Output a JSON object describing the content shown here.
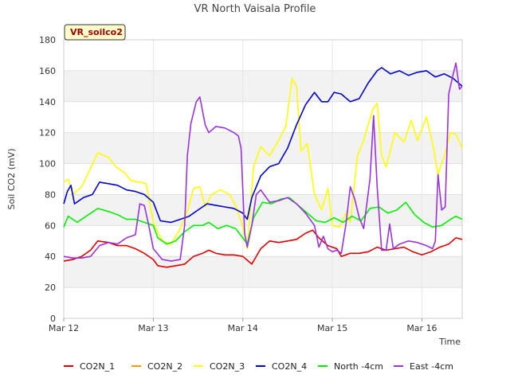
{
  "chart_data": {
    "type": "line",
    "title": "VR North Vaisala Profile",
    "xlabel": "Time",
    "ylabel": "Soil CO2 (mV)",
    "badge": "VR_soilco2",
    "ylim": [
      0,
      180
    ],
    "yticks": [
      0,
      20,
      40,
      60,
      80,
      100,
      120,
      140,
      160,
      180
    ],
    "xlim": [
      0,
      4.45
    ],
    "xticks": [
      {
        "value": 0,
        "label": "Mar 12"
      },
      {
        "value": 1,
        "label": "Mar 13"
      },
      {
        "value": 2,
        "label": "Mar 14"
      },
      {
        "value": 3,
        "label": "Mar 15"
      },
      {
        "value": 4,
        "label": "Mar 16"
      }
    ],
    "grid": true,
    "legend_position": "bottom",
    "series": [
      {
        "name": "CO2N_1",
        "color": "#dd0000",
        "points": [
          [
            0,
            37
          ],
          [
            0.1,
            38
          ],
          [
            0.2,
            40
          ],
          [
            0.3,
            44
          ],
          [
            0.38,
            50
          ],
          [
            0.5,
            49
          ],
          [
            0.6,
            47
          ],
          [
            0.7,
            47
          ],
          [
            0.8,
            45
          ],
          [
            0.9,
            42
          ],
          [
            1.0,
            38
          ],
          [
            1.05,
            34
          ],
          [
            1.15,
            33
          ],
          [
            1.25,
            34
          ],
          [
            1.35,
            35
          ],
          [
            1.45,
            40
          ],
          [
            1.55,
            42
          ],
          [
            1.62,
            44
          ],
          [
            1.7,
            42
          ],
          [
            1.8,
            41
          ],
          [
            1.9,
            41
          ],
          [
            2.0,
            40
          ],
          [
            2.1,
            35
          ],
          [
            2.2,
            45
          ],
          [
            2.3,
            50
          ],
          [
            2.4,
            49
          ],
          [
            2.5,
            50
          ],
          [
            2.6,
            51
          ],
          [
            2.7,
            55
          ],
          [
            2.78,
            57
          ],
          [
            2.85,
            52
          ],
          [
            2.95,
            47
          ],
          [
            3.05,
            45
          ],
          [
            3.1,
            40
          ],
          [
            3.2,
            42
          ],
          [
            3.3,
            42
          ],
          [
            3.4,
            43
          ],
          [
            3.5,
            46
          ],
          [
            3.6,
            44
          ],
          [
            3.7,
            45
          ],
          [
            3.8,
            46
          ],
          [
            3.9,
            43
          ],
          [
            4.0,
            41
          ],
          [
            4.1,
            43
          ],
          [
            4.2,
            46
          ],
          [
            4.3,
            48
          ],
          [
            4.38,
            52
          ],
          [
            4.45,
            51
          ]
        ]
      },
      {
        "name": "CO2N_2",
        "color": "#ff9900",
        "points": []
      },
      {
        "name": "CO2N_3",
        "color": "#ffff00",
        "points": [
          [
            0,
            88
          ],
          [
            0.05,
            90
          ],
          [
            0.1,
            80
          ],
          [
            0.2,
            85
          ],
          [
            0.3,
            97
          ],
          [
            0.38,
            107
          ],
          [
            0.5,
            104
          ],
          [
            0.58,
            98
          ],
          [
            0.68,
            94
          ],
          [
            0.75,
            89
          ],
          [
            0.85,
            88
          ],
          [
            0.92,
            87
          ],
          [
            1.0,
            62
          ],
          [
            1.1,
            50
          ],
          [
            1.2,
            48
          ],
          [
            1.3,
            58
          ],
          [
            1.38,
            69
          ],
          [
            1.45,
            84
          ],
          [
            1.52,
            85
          ],
          [
            1.58,
            72
          ],
          [
            1.65,
            80
          ],
          [
            1.75,
            83
          ],
          [
            1.85,
            80
          ],
          [
            1.92,
            73
          ],
          [
            2.0,
            59
          ],
          [
            2.05,
            45
          ],
          [
            2.12,
            98
          ],
          [
            2.2,
            111
          ],
          [
            2.3,
            105
          ],
          [
            2.4,
            115
          ],
          [
            2.48,
            124
          ],
          [
            2.55,
            155
          ],
          [
            2.6,
            150
          ],
          [
            2.65,
            108
          ],
          [
            2.72,
            113
          ],
          [
            2.8,
            80
          ],
          [
            2.88,
            70
          ],
          [
            2.95,
            84
          ],
          [
            3.0,
            60
          ],
          [
            3.08,
            59
          ],
          [
            3.15,
            68
          ],
          [
            3.2,
            62
          ],
          [
            3.28,
            105
          ],
          [
            3.35,
            115
          ],
          [
            3.45,
            135
          ],
          [
            3.5,
            139
          ],
          [
            3.55,
            105
          ],
          [
            3.6,
            98
          ],
          [
            3.7,
            120
          ],
          [
            3.8,
            114
          ],
          [
            3.88,
            128
          ],
          [
            3.95,
            115
          ],
          [
            4.05,
            130
          ],
          [
            4.12,
            113
          ],
          [
            4.18,
            93
          ],
          [
            4.25,
            105
          ],
          [
            4.32,
            120
          ],
          [
            4.38,
            119
          ],
          [
            4.45,
            110
          ]
        ]
      },
      {
        "name": "CO2N_4",
        "color": "#0000cc",
        "points": [
          [
            0,
            74
          ],
          [
            0.04,
            82
          ],
          [
            0.08,
            86
          ],
          [
            0.12,
            74
          ],
          [
            0.22,
            78
          ],
          [
            0.32,
            80
          ],
          [
            0.4,
            88
          ],
          [
            0.5,
            87
          ],
          [
            0.6,
            86
          ],
          [
            0.7,
            83
          ],
          [
            0.8,
            82
          ],
          [
            0.9,
            80
          ],
          [
            1.0,
            75
          ],
          [
            1.08,
            63
          ],
          [
            1.2,
            62
          ],
          [
            1.3,
            64
          ],
          [
            1.4,
            66
          ],
          [
            1.5,
            70
          ],
          [
            1.6,
            74
          ],
          [
            1.7,
            73
          ],
          [
            1.8,
            72
          ],
          [
            1.9,
            71
          ],
          [
            2.0,
            68
          ],
          [
            2.05,
            64
          ],
          [
            2.1,
            78
          ],
          [
            2.2,
            92
          ],
          [
            2.3,
            98
          ],
          [
            2.4,
            100
          ],
          [
            2.5,
            110
          ],
          [
            2.6,
            125
          ],
          [
            2.7,
            138
          ],
          [
            2.8,
            146
          ],
          [
            2.88,
            140
          ],
          [
            2.95,
            140
          ],
          [
            3.02,
            146
          ],
          [
            3.1,
            145
          ],
          [
            3.2,
            140
          ],
          [
            3.3,
            142
          ],
          [
            3.4,
            152
          ],
          [
            3.5,
            160
          ],
          [
            3.55,
            162
          ],
          [
            3.65,
            158
          ],
          [
            3.75,
            160
          ],
          [
            3.85,
            157
          ],
          [
            3.95,
            159
          ],
          [
            4.05,
            160
          ],
          [
            4.15,
            156
          ],
          [
            4.25,
            158
          ],
          [
            4.35,
            155
          ],
          [
            4.45,
            150
          ]
        ]
      },
      {
        "name": "North -4cm",
        "color": "#00ee00",
        "points": [
          [
            0,
            59
          ],
          [
            0.05,
            66
          ],
          [
            0.15,
            62
          ],
          [
            0.25,
            66
          ],
          [
            0.38,
            71
          ],
          [
            0.5,
            69
          ],
          [
            0.6,
            67
          ],
          [
            0.7,
            64
          ],
          [
            0.8,
            64
          ],
          [
            0.9,
            62
          ],
          [
            1.0,
            60
          ],
          [
            1.05,
            52
          ],
          [
            1.15,
            48
          ],
          [
            1.25,
            50
          ],
          [
            1.35,
            56
          ],
          [
            1.45,
            60
          ],
          [
            1.55,
            60
          ],
          [
            1.62,
            62
          ],
          [
            1.72,
            58
          ],
          [
            1.82,
            60
          ],
          [
            1.92,
            58
          ],
          [
            2.0,
            52
          ],
          [
            2.05,
            48
          ],
          [
            2.12,
            65
          ],
          [
            2.22,
            75
          ],
          [
            2.32,
            74
          ],
          [
            2.42,
            77
          ],
          [
            2.52,
            78
          ],
          [
            2.62,
            73
          ],
          [
            2.72,
            68
          ],
          [
            2.82,
            63
          ],
          [
            2.92,
            62
          ],
          [
            3.02,
            65
          ],
          [
            3.12,
            62
          ],
          [
            3.22,
            66
          ],
          [
            3.32,
            63
          ],
          [
            3.42,
            71
          ],
          [
            3.52,
            72
          ],
          [
            3.62,
            68
          ],
          [
            3.72,
            70
          ],
          [
            3.82,
            75
          ],
          [
            3.92,
            67
          ],
          [
            4.02,
            62
          ],
          [
            4.12,
            59
          ],
          [
            4.22,
            60
          ],
          [
            4.32,
            64
          ],
          [
            4.38,
            66
          ],
          [
            4.45,
            64
          ]
        ]
      },
      {
        "name": "East -4cm",
        "color": "#9933dd",
        "points": [
          [
            0,
            40
          ],
          [
            0.1,
            39
          ],
          [
            0.2,
            39
          ],
          [
            0.3,
            40
          ],
          [
            0.4,
            47
          ],
          [
            0.5,
            49
          ],
          [
            0.6,
            48
          ],
          [
            0.7,
            52
          ],
          [
            0.8,
            54
          ],
          [
            0.85,
            74
          ],
          [
            0.9,
            73
          ],
          [
            0.95,
            60
          ],
          [
            1.0,
            45
          ],
          [
            1.1,
            38
          ],
          [
            1.2,
            37
          ],
          [
            1.3,
            38
          ],
          [
            1.35,
            60
          ],
          [
            1.38,
            105
          ],
          [
            1.42,
            126
          ],
          [
            1.48,
            140
          ],
          [
            1.52,
            143
          ],
          [
            1.58,
            125
          ],
          [
            1.62,
            120
          ],
          [
            1.7,
            124
          ],
          [
            1.8,
            123
          ],
          [
            1.9,
            120
          ],
          [
            1.95,
            118
          ],
          [
            1.98,
            110
          ],
          [
            2.02,
            55
          ],
          [
            2.05,
            46
          ],
          [
            2.1,
            60
          ],
          [
            2.15,
            80
          ],
          [
            2.2,
            83
          ],
          [
            2.3,
            75
          ],
          [
            2.4,
            76
          ],
          [
            2.5,
            78
          ],
          [
            2.6,
            74
          ],
          [
            2.7,
            68
          ],
          [
            2.8,
            60
          ],
          [
            2.85,
            46
          ],
          [
            2.9,
            53
          ],
          [
            2.95,
            45
          ],
          [
            3.0,
            43
          ],
          [
            3.05,
            44
          ],
          [
            3.1,
            42
          ],
          [
            3.15,
            60
          ],
          [
            3.2,
            85
          ],
          [
            3.25,
            77
          ],
          [
            3.3,
            65
          ],
          [
            3.35,
            58
          ],
          [
            3.42,
            90
          ],
          [
            3.46,
            131
          ],
          [
            3.5,
            85
          ],
          [
            3.55,
            44
          ],
          [
            3.6,
            44
          ],
          [
            3.64,
            61
          ],
          [
            3.68,
            45
          ],
          [
            3.75,
            48
          ],
          [
            3.85,
            50
          ],
          [
            3.95,
            49
          ],
          [
            4.05,
            47
          ],
          [
            4.12,
            45
          ],
          [
            4.15,
            50
          ],
          [
            4.18,
            93
          ],
          [
            4.22,
            70
          ],
          [
            4.26,
            72
          ],
          [
            4.3,
            145
          ],
          [
            4.35,
            158
          ],
          [
            4.38,
            165
          ],
          [
            4.42,
            148
          ],
          [
            4.45,
            150
          ]
        ]
      }
    ]
  }
}
